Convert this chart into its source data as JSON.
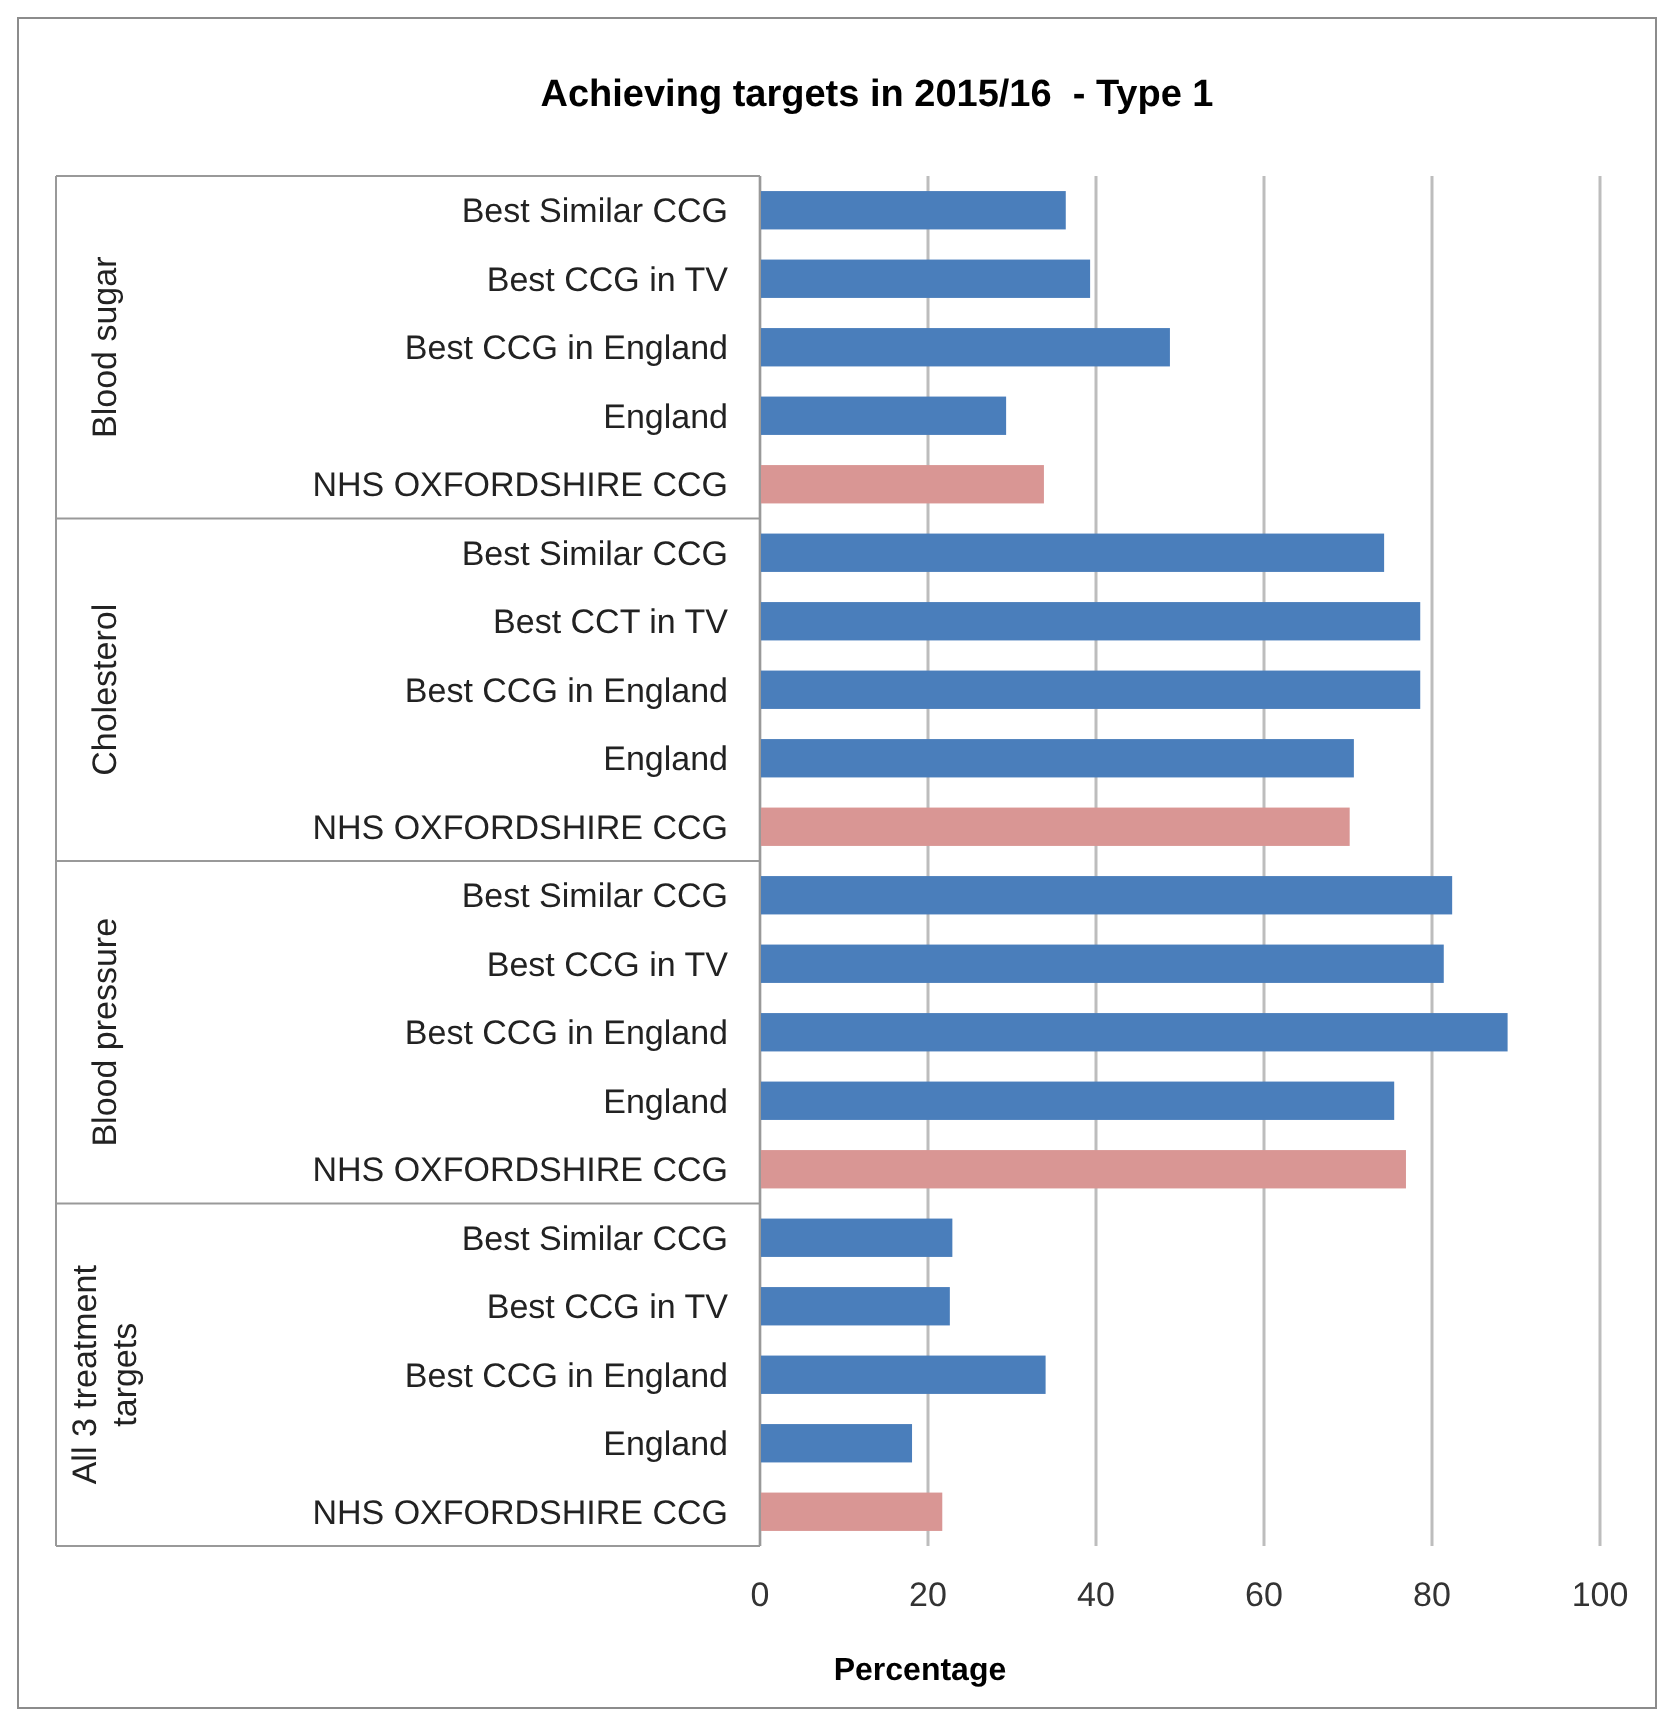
{
  "chart_data": {
    "type": "bar",
    "orientation": "horizontal",
    "title": "Achieving targets in 2015/16  - Type 1",
    "xlabel": "Percentage",
    "categories": [
      "Best Similar CCG",
      "Best CCG in TV",
      "Best CCG in England",
      "England",
      "NHS OXFORDSHIRE CCG",
      "Best Similar CCG",
      "Best CCT in TV",
      "Best CCG in England",
      "England",
      "NHS OXFORDSHIRE CCG",
      "Best Similar CCG",
      "Best CCG in TV",
      "Best CCG in England",
      "England",
      "NHS OXFORDSHIRE CCG",
      "Best Similar CCG",
      "Best CCG in TV",
      "Best CCG in England",
      "England",
      "NHS OXFORDSHIRE CCG"
    ],
    "values": [
      36.4,
      39.3,
      48.8,
      29.3,
      33.8,
      74.3,
      78.6,
      78.6,
      70.7,
      70.2,
      82.4,
      81.4,
      89,
      75.5,
      76.9,
      22.9,
      22.6,
      34,
      18.1,
      21.7
    ],
    "colors": [
      "#4a7ebb",
      "#4a7ebb",
      "#4a7ebb",
      "#4a7ebb",
      "#d99694",
      "#4a7ebb",
      "#4a7ebb",
      "#4a7ebb",
      "#4a7ebb",
      "#d99694",
      "#4a7ebb",
      "#4a7ebb",
      "#4a7ebb",
      "#4a7ebb",
      "#d99694",
      "#4a7ebb",
      "#4a7ebb",
      "#4a7ebb",
      "#4a7ebb",
      "#d99694"
    ],
    "annotations": [
      "Blood sugar",
      "Cholesterol",
      "Blood pressure",
      "All 3 treatment targets"
    ],
    "xlim": [
      0,
      100
    ],
    "xticks": [
      0,
      20,
      40,
      60,
      80,
      100
    ],
    "grid": "x"
  }
}
